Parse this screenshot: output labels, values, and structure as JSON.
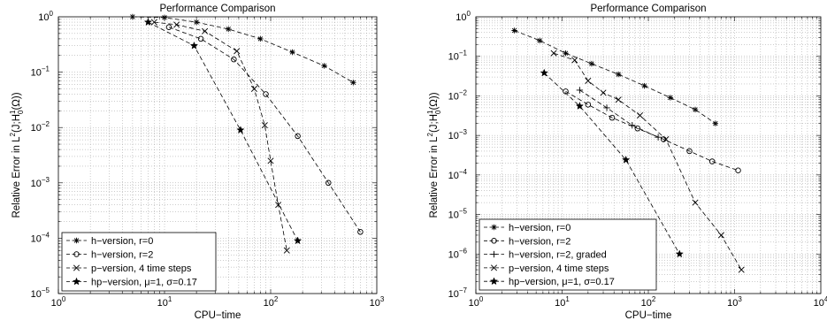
{
  "chart_data": [
    {
      "type": "line",
      "title": "Performance Comparison",
      "xlabel": "CPU−time",
      "ylabel": "Relative Error in L2(J;H01(Ω))",
      "x_scale": "log",
      "y_scale": "log",
      "xlim": [
        1,
        1000
      ],
      "ylim": [
        1e-05,
        1
      ],
      "x_ticks": [
        {
          "value": 1,
          "exp": "0"
        },
        {
          "value": 10,
          "exp": "1"
        },
        {
          "value": 100,
          "exp": "2"
        },
        {
          "value": 1000,
          "exp": "3"
        }
      ],
      "y_ticks": [
        {
          "value": 1e-05,
          "exp": "−5"
        },
        {
          "value": 0.0001,
          "exp": "−4"
        },
        {
          "value": 0.001,
          "exp": "−3"
        },
        {
          "value": 0.01,
          "exp": "−2"
        },
        {
          "value": 0.1,
          "exp": "−1"
        },
        {
          "value": 1,
          "exp": "0"
        }
      ],
      "grid": true,
      "legend_position": "bottom-left",
      "series": [
        {
          "name": "h−version, r=0",
          "marker": "asterisk",
          "x": [
            5,
            10,
            20,
            40,
            80,
            160,
            320,
            600
          ],
          "y": [
            1.0,
            0.97,
            0.8,
            0.6,
            0.4,
            0.23,
            0.13,
            0.065
          ]
        },
        {
          "name": "h−version, r=2",
          "marker": "circle",
          "x": [
            11,
            22,
            45,
            90,
            180,
            350,
            700
          ],
          "y": [
            0.65,
            0.4,
            0.17,
            0.04,
            0.007,
            0.001,
            0.00013
          ]
        },
        {
          "name": "p−version, 4 time steps",
          "marker": "x",
          "x": [
            8,
            13,
            24,
            48,
            70,
            88,
            100,
            118,
            142
          ],
          "y": [
            0.8,
            0.72,
            0.55,
            0.24,
            0.05,
            0.011,
            0.0025,
            0.0004,
            6e-05
          ]
        },
        {
          "name": "hp−version, μ=1, σ=0.17",
          "marker": "star",
          "x": [
            7,
            19,
            52,
            180
          ],
          "y": [
            0.8,
            0.3,
            0.009,
            9e-05
          ]
        }
      ]
    },
    {
      "type": "line",
      "title": "Performance Comparison",
      "xlabel": "CPU−time",
      "ylabel": "Relative Error in L2(J;H01(Ω))",
      "x_scale": "log",
      "y_scale": "log",
      "xlim": [
        1,
        10000
      ],
      "ylim": [
        1e-07,
        1
      ],
      "x_ticks": [
        {
          "value": 1,
          "exp": "0"
        },
        {
          "value": 10,
          "exp": "1"
        },
        {
          "value": 100,
          "exp": "2"
        },
        {
          "value": 1000,
          "exp": "3"
        },
        {
          "value": 10000,
          "exp": "4"
        }
      ],
      "y_ticks": [
        {
          "value": 1e-07,
          "exp": "−7"
        },
        {
          "value": 1e-06,
          "exp": "−6"
        },
        {
          "value": 1e-05,
          "exp": "−5"
        },
        {
          "value": 0.0001,
          "exp": "−4"
        },
        {
          "value": 0.001,
          "exp": "−3"
        },
        {
          "value": 0.01,
          "exp": "−2"
        },
        {
          "value": 0.1,
          "exp": "−1"
        },
        {
          "value": 1,
          "exp": "0"
        }
      ],
      "grid": true,
      "legend_position": "bottom-left",
      "series": [
        {
          "name": "h−version, r=0",
          "marker": "asterisk",
          "x": [
            2.8,
            5.5,
            11,
            22,
            45,
            90,
            180,
            350,
            600
          ],
          "y": [
            0.45,
            0.25,
            0.12,
            0.065,
            0.035,
            0.018,
            0.009,
            0.0045,
            0.002
          ]
        },
        {
          "name": "h−version, r=2",
          "marker": "circle",
          "x": [
            11,
            20,
            38,
            75,
            150,
            300,
            550,
            1100
          ],
          "y": [
            0.013,
            0.006,
            0.0028,
            0.0015,
            0.0008,
            0.0004,
            0.00022,
            0.00013
          ]
        },
        {
          "name": "h−version, r=2, graded",
          "marker": "plus",
          "x": [
            16,
            33,
            65,
            130
          ],
          "y": [
            0.014,
            0.005,
            0.0018,
            0.0009
          ]
        },
        {
          "name": "p−version, 4 time steps",
          "marker": "x",
          "x": [
            8,
            14,
            20,
            30,
            45,
            80,
            160,
            350,
            700,
            1200
          ],
          "y": [
            0.12,
            0.08,
            0.024,
            0.012,
            0.008,
            0.0032,
            0.0008,
            2e-05,
            3e-06,
            4e-07
          ]
        },
        {
          "name": "hp−version, μ=1, σ=0.17",
          "marker": "star",
          "x": [
            6.2,
            16,
            55,
            230
          ],
          "y": [
            0.038,
            0.0055,
            0.00024,
            1e-06
          ]
        }
      ]
    }
  ]
}
